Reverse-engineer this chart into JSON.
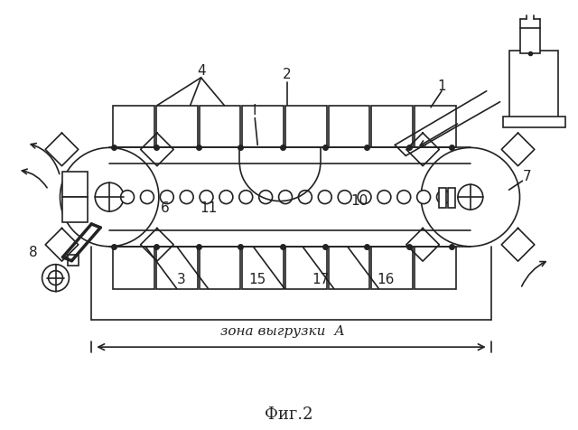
{
  "title": "Фиг.2",
  "zone_label": "зона выгрузки  А",
  "bg_color": "#ffffff",
  "lc": "#222222",
  "fig_w": 6.4,
  "fig_h": 4.76,
  "dpi": 100
}
